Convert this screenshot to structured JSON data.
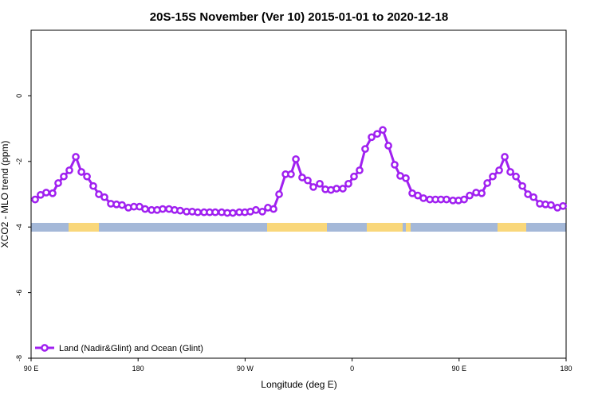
{
  "chart_data": {
    "type": "line",
    "title": "20S-15S November (Ver 10)   2015-01-01 to 2020-12-18",
    "xlabel": "Longitude (deg E)",
    "ylabel": "XCO2 - MLO trend (ppm)",
    "xlim": [
      90,
      540
    ],
    "ylim": [
      -8,
      2
    ],
    "xticks": [
      {
        "value": 90,
        "label": "90 E"
      },
      180,
      {
        "value": 270,
        "label": "90 W"
      },
      {
        "value": 360,
        "label": "0"
      },
      {
        "value": 450,
        "label": "90 E"
      },
      {
        "value": 540,
        "label": "180"
      }
    ],
    "yticks": [
      0,
      -2,
      -4,
      -6,
      -8
    ],
    "legend": "bottom-left",
    "x": [
      93.4,
      98.0,
      102.7,
      108.1,
      112.8,
      117.5,
      122.2,
      127.6,
      132.3,
      137.0,
      142.3,
      147.0,
      151.7,
      157.1,
      161.8,
      166.5,
      171.8,
      176.5,
      181.2,
      185.9,
      191.3,
      196.0,
      200.7,
      206.0,
      210.7,
      215.4,
      220.8,
      225.5,
      230.2,
      235.5,
      240.2,
      244.9,
      250.3,
      255.0,
      259.7,
      265.1,
      269.8,
      274.4,
      279.1,
      284.5,
      289.2,
      293.9,
      298.6,
      304.0,
      308.6,
      312.7,
      318.0,
      322.7,
      327.4,
      332.8,
      337.5,
      342.2,
      346.9,
      352.2,
      356.9,
      361.6,
      366.3,
      371.0,
      376.4,
      381.1,
      385.8,
      390.5,
      395.8,
      400.5,
      405.2,
      410.6,
      415.3,
      420.0,
      425.4,
      430.1,
      434.7,
      439.4,
      444.8,
      449.5,
      454.2,
      458.9,
      464.3,
      469.0,
      473.7,
      478.3,
      483.7,
      488.4,
      493.1,
      497.8,
      503.2,
      507.9,
      512.6,
      517.9,
      522.6,
      527.3,
      532.7,
      537.4
    ],
    "series": [
      {
        "name": "Land (Nadir&Glint) and Ocean (Glint)",
        "color": "#a020f0",
        "values": [
          -3.16,
          -3.02,
          -2.95,
          -2.97,
          -2.66,
          -2.46,
          -2.27,
          -1.86,
          -2.32,
          -2.46,
          -2.75,
          -3.0,
          -3.09,
          -3.29,
          -3.31,
          -3.33,
          -3.41,
          -3.38,
          -3.38,
          -3.45,
          -3.48,
          -3.48,
          -3.45,
          -3.45,
          -3.48,
          -3.5,
          -3.53,
          -3.53,
          -3.55,
          -3.55,
          -3.55,
          -3.55,
          -3.55,
          -3.57,
          -3.57,
          -3.55,
          -3.55,
          -3.53,
          -3.48,
          -3.53,
          -3.41,
          -3.45,
          -3.0,
          -2.39,
          -2.39,
          -1.93,
          -2.49,
          -2.58,
          -2.78,
          -2.68,
          -2.85,
          -2.87,
          -2.83,
          -2.83,
          -2.68,
          -2.46,
          -2.27,
          -1.62,
          -1.26,
          -1.16,
          -1.04,
          -1.52,
          -2.1,
          -2.44,
          -2.51,
          -2.97,
          -3.04,
          -3.12,
          -3.16,
          -3.16,
          -3.16,
          -3.16,
          -3.19,
          -3.19,
          -3.16,
          -3.04,
          -2.95,
          -2.97,
          -2.66,
          -2.46,
          -2.27,
          -1.86,
          -2.32,
          -2.46,
          -2.75,
          -3.0,
          -3.09,
          -3.29,
          -3.31,
          -3.33,
          -3.41,
          -3.36
        ]
      }
    ]
  }
}
